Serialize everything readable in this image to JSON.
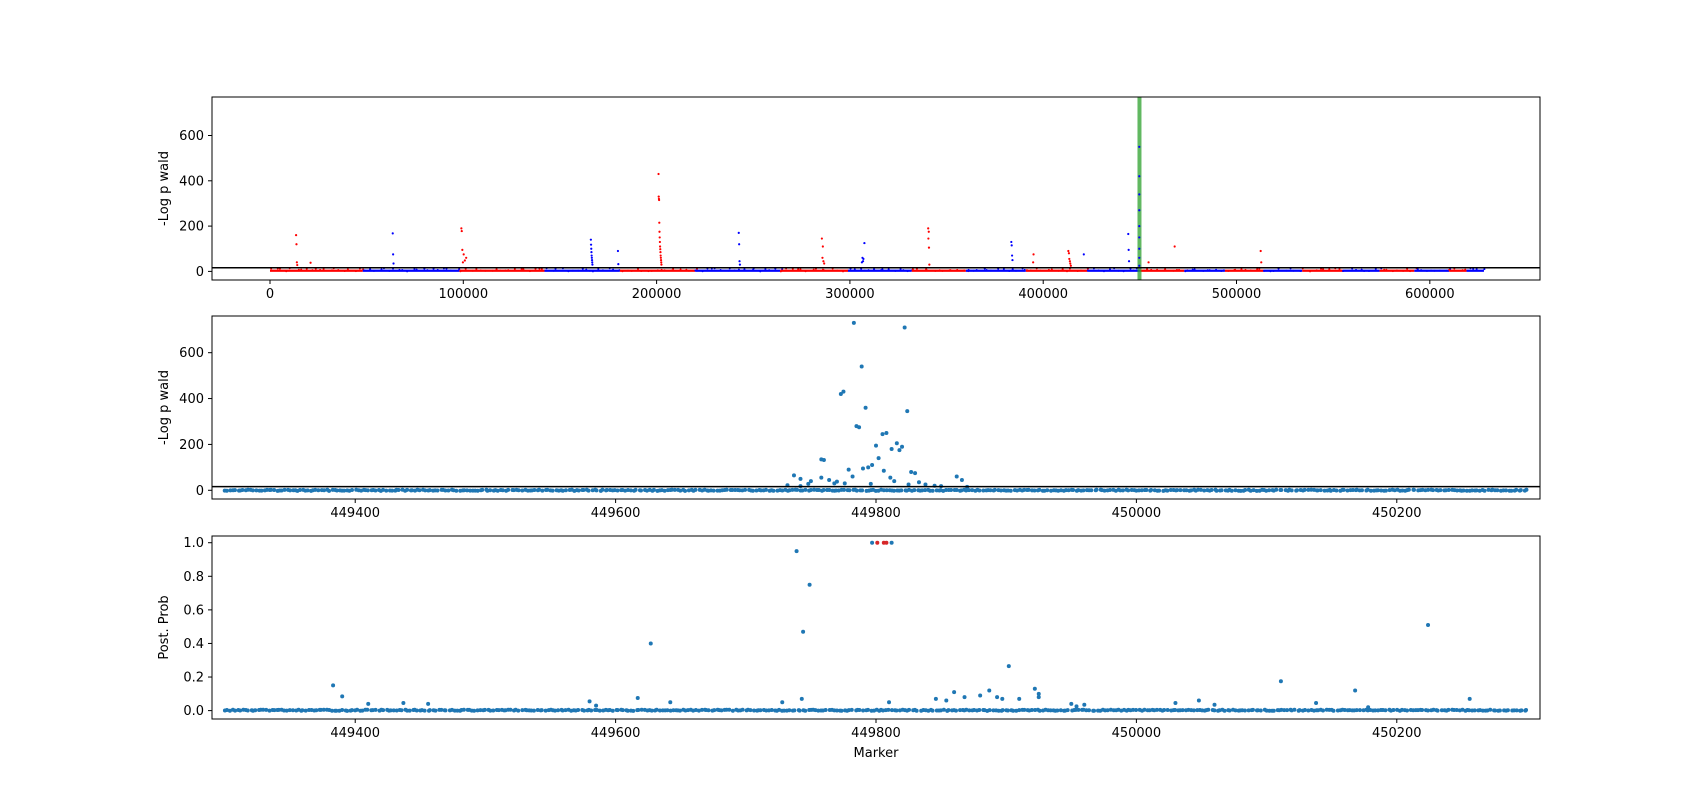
{
  "figure": {
    "colors": {
      "background": "#ffffff",
      "axis": "#000000",
      "chrom_odd": "#ff0000",
      "chrom_even": "#0000ff",
      "highlight": "#2ca02c",
      "point": "#1f77b4",
      "top_point": "#d62728",
      "threshold": "#000000"
    }
  },
  "chart_data": [
    {
      "type": "scatter",
      "title": "",
      "xlabel": "",
      "ylabel": "-Log p wald",
      "xlim": [
        -30000,
        657000
      ],
      "ylim": [
        -38,
        770
      ],
      "x_ticks": [
        0,
        100000,
        200000,
        300000,
        400000,
        500000,
        600000
      ],
      "x_tick_labels": [
        "0",
        "100000",
        "200000",
        "300000",
        "400000",
        "500000",
        "600000"
      ],
      "y_ticks": [
        0,
        200,
        400,
        600
      ],
      "y_tick_labels": [
        "0",
        "200",
        "400",
        "600"
      ],
      "threshold": 16,
      "highlight_x": 449800,
      "chromosome_bands": [
        {
          "start": 0,
          "end": 48000,
          "color": "red"
        },
        {
          "start": 48000,
          "end": 98000,
          "color": "blue"
        },
        {
          "start": 98000,
          "end": 142000,
          "color": "red"
        },
        {
          "start": 142000,
          "end": 181000,
          "color": "blue"
        },
        {
          "start": 181000,
          "end": 220000,
          "color": "red"
        },
        {
          "start": 220000,
          "end": 264000,
          "color": "blue"
        },
        {
          "start": 264000,
          "end": 299000,
          "color": "red"
        },
        {
          "start": 299000,
          "end": 332000,
          "color": "blue"
        },
        {
          "start": 332000,
          "end": 360000,
          "color": "red"
        },
        {
          "start": 360000,
          "end": 391000,
          "color": "blue"
        },
        {
          "start": 391000,
          "end": 423000,
          "color": "red"
        },
        {
          "start": 423000,
          "end": 450000,
          "color": "blue"
        },
        {
          "start": 450000,
          "end": 473000,
          "color": "red"
        },
        {
          "start": 473000,
          "end": 494000,
          "color": "blue"
        },
        {
          "start": 494000,
          "end": 514000,
          "color": "red"
        },
        {
          "start": 514000,
          "end": 534000,
          "color": "blue"
        },
        {
          "start": 534000,
          "end": 555000,
          "color": "red"
        },
        {
          "start": 555000,
          "end": 574000,
          "color": "blue"
        },
        {
          "start": 574000,
          "end": 592000,
          "color": "red"
        },
        {
          "start": 592000,
          "end": 610000,
          "color": "blue"
        },
        {
          "start": 610000,
          "end": 619000,
          "color": "red"
        },
        {
          "start": 619000,
          "end": 628000,
          "color": "blue"
        }
      ],
      "series": [
        {
          "color": "red",
          "points": [
            [
              13500,
              160
            ],
            [
              13700,
              120
            ],
            [
              13900,
              40
            ],
            [
              14100,
              28
            ],
            [
              21000,
              38
            ],
            [
              99000,
              190
            ],
            [
              99200,
              178
            ],
            [
              99500,
              95
            ],
            [
              100200,
              75
            ],
            [
              101500,
              60
            ],
            [
              100800,
              48
            ],
            [
              99800,
              40
            ],
            [
              201000,
              430
            ],
            [
              201100,
              330
            ],
            [
              201200,
              320
            ],
            [
              201300,
              315
            ],
            [
              201400,
              215
            ],
            [
              201500,
              175
            ],
            [
              201600,
              150
            ],
            [
              201700,
              130
            ],
            [
              201800,
              110
            ],
            [
              201900,
              98
            ],
            [
              202000,
              85
            ],
            [
              202100,
              70
            ],
            [
              202200,
              60
            ],
            [
              202300,
              50
            ],
            [
              202400,
              40
            ],
            [
              202500,
              30
            ],
            [
              285500,
              145
            ],
            [
              286000,
              110
            ],
            [
              285800,
              60
            ],
            [
              286300,
              45
            ],
            [
              286700,
              35
            ],
            [
              340500,
              190
            ],
            [
              340800,
              175
            ],
            [
              340600,
              145
            ],
            [
              340900,
              105
            ],
            [
              341100,
              30
            ],
            [
              395000,
              75
            ],
            [
              394800,
              40
            ],
            [
              413000,
              90
            ],
            [
              413300,
              80
            ],
            [
              413500,
              55
            ],
            [
              413800,
              45
            ],
            [
              414000,
              35
            ],
            [
              414300,
              25
            ],
            [
              454500,
              40
            ],
            [
              468000,
              110
            ],
            [
              512500,
              90
            ],
            [
              512800,
              40
            ]
          ]
        },
        {
          "color": "blue",
          "points": [
            [
              63500,
              168
            ],
            [
              63700,
              75
            ],
            [
              63900,
              35
            ],
            [
              166000,
              140
            ],
            [
              166100,
              118
            ],
            [
              166200,
              100
            ],
            [
              166300,
              85
            ],
            [
              166400,
              70
            ],
            [
              166500,
              60
            ],
            [
              166600,
              50
            ],
            [
              166700,
              40
            ],
            [
              166800,
              30
            ],
            [
              180000,
              90
            ],
            [
              180200,
              32
            ],
            [
              242500,
              170
            ],
            [
              242700,
              120
            ],
            [
              242900,
              45
            ],
            [
              243100,
              30
            ],
            [
              307500,
              125
            ],
            [
              306500,
              60
            ],
            [
              307000,
              55
            ],
            [
              306800,
              45
            ],
            [
              306200,
              40
            ],
            [
              383500,
              130
            ],
            [
              383700,
              115
            ],
            [
              383900,
              70
            ],
            [
              384100,
              50
            ],
            [
              421000,
              75
            ],
            [
              444000,
              165
            ],
            [
              444200,
              95
            ],
            [
              444400,
              45
            ],
            [
              449700,
              550
            ],
            [
              449700,
              420
            ],
            [
              449700,
              340
            ],
            [
              449700,
              270
            ],
            [
              449700,
              200
            ],
            [
              449700,
              150
            ],
            [
              449700,
              100
            ],
            [
              449700,
              60
            ],
            [
              449700,
              25
            ]
          ]
        }
      ]
    },
    {
      "type": "scatter",
      "title": "",
      "xlabel": "",
      "ylabel": "-Log p wald",
      "xlim": [
        449290,
        450310
      ],
      "ylim": [
        -38,
        760
      ],
      "x_ticks": [
        449400,
        449600,
        449800,
        450000,
        450200
      ],
      "x_tick_labels": [
        "449400",
        "449600",
        "449800",
        "450000",
        "450200"
      ],
      "y_ticks": [
        0,
        200,
        400,
        600
      ],
      "y_tick_labels": [
        "0",
        "200",
        "400",
        "600"
      ],
      "threshold": 16,
      "baseline_range": [
        449300,
        450300
      ],
      "points": [
        [
          449783,
          730
        ],
        [
          449822,
          710
        ],
        [
          449789,
          540
        ],
        [
          449775,
          430
        ],
        [
          449773,
          420
        ],
        [
          449824,
          345
        ],
        [
          449792,
          360
        ],
        [
          449785,
          280
        ],
        [
          449787,
          275
        ],
        [
          449808,
          250
        ],
        [
          449805,
          245
        ],
        [
          449816,
          205
        ],
        [
          449818,
          175
        ],
        [
          449800,
          195
        ],
        [
          449812,
          180
        ],
        [
          449820,
          190
        ],
        [
          449758,
          135
        ],
        [
          449760,
          132
        ],
        [
          449802,
          140
        ],
        [
          449797,
          110
        ],
        [
          449794,
          100
        ],
        [
          449806,
          85
        ],
        [
          449790,
          95
        ],
        [
          449779,
          90
        ],
        [
          449827,
          80
        ],
        [
          449830,
          75
        ],
        [
          449737,
          65
        ],
        [
          449742,
          50
        ],
        [
          449758,
          55
        ],
        [
          449862,
          60
        ],
        [
          449866,
          45
        ],
        [
          449750,
          40
        ],
        [
          449764,
          45
        ],
        [
          449770,
          38
        ],
        [
          449782,
          60
        ],
        [
          449811,
          55
        ],
        [
          449814,
          40
        ],
        [
          449833,
          35
        ],
        [
          449748,
          28
        ],
        [
          449768,
          30
        ],
        [
          449776,
          30
        ],
        [
          449796,
          28
        ],
        [
          449825,
          25
        ],
        [
          449838,
          25
        ],
        [
          449845,
          20
        ],
        [
          449850,
          18
        ],
        [
          449732,
          22
        ],
        [
          449742,
          18
        ],
        [
          449870,
          15
        ]
      ]
    },
    {
      "type": "scatter",
      "title": "",
      "xlabel": "Marker",
      "ylabel": "Post. Prob",
      "xlim": [
        449290,
        450310
      ],
      "ylim": [
        -0.05,
        1.04
      ],
      "x_ticks": [
        449400,
        449600,
        449800,
        450000,
        450200
      ],
      "x_tick_labels": [
        "449400",
        "449600",
        "449800",
        "450000",
        "450200"
      ],
      "y_ticks": [
        0.0,
        0.2,
        0.4,
        0.6,
        0.8,
        1.0
      ],
      "y_tick_labels": [
        "0.0",
        "0.2",
        "0.4",
        "0.6",
        "0.8",
        "1.0"
      ],
      "baseline_range": [
        449300,
        450300
      ],
      "top_points": [
        [
          449801,
          1.0
        ],
        [
          449806,
          1.0
        ],
        [
          449808,
          1.0
        ]
      ],
      "points": [
        [
          449797,
          1.0
        ],
        [
          449812,
          1.0
        ],
        [
          449739,
          0.95
        ],
        [
          449749,
          0.75
        ],
        [
          449744,
          0.47
        ],
        [
          449627,
          0.4
        ],
        [
          450224,
          0.51
        ],
        [
          449902,
          0.265
        ],
        [
          449383,
          0.15
        ],
        [
          449390,
          0.085
        ],
        [
          449410,
          0.04
        ],
        [
          449437,
          0.045
        ],
        [
          449456,
          0.04
        ],
        [
          449580,
          0.055
        ],
        [
          449617,
          0.075
        ],
        [
          449642,
          0.05
        ],
        [
          449728,
          0.05
        ],
        [
          449743,
          0.07
        ],
        [
          449810,
          0.05
        ],
        [
          449846,
          0.07
        ],
        [
          449854,
          0.06
        ],
        [
          449860,
          0.11
        ],
        [
          449868,
          0.08
        ],
        [
          449880,
          0.09
        ],
        [
          449887,
          0.12
        ],
        [
          449893,
          0.08
        ],
        [
          449897,
          0.07
        ],
        [
          449910,
          0.07
        ],
        [
          449922,
          0.13
        ],
        [
          449925,
          0.1
        ],
        [
          449925,
          0.08
        ],
        [
          449950,
          0.04
        ],
        [
          449960,
          0.035
        ],
        [
          450030,
          0.045
        ],
        [
          450048,
          0.06
        ],
        [
          450060,
          0.035
        ],
        [
          450111,
          0.175
        ],
        [
          450138,
          0.045
        ],
        [
          450168,
          0.12
        ],
        [
          450256,
          0.07
        ],
        [
          449954,
          0.025
        ],
        [
          449585,
          0.03
        ],
        [
          450178,
          0.02
        ]
      ]
    }
  ]
}
